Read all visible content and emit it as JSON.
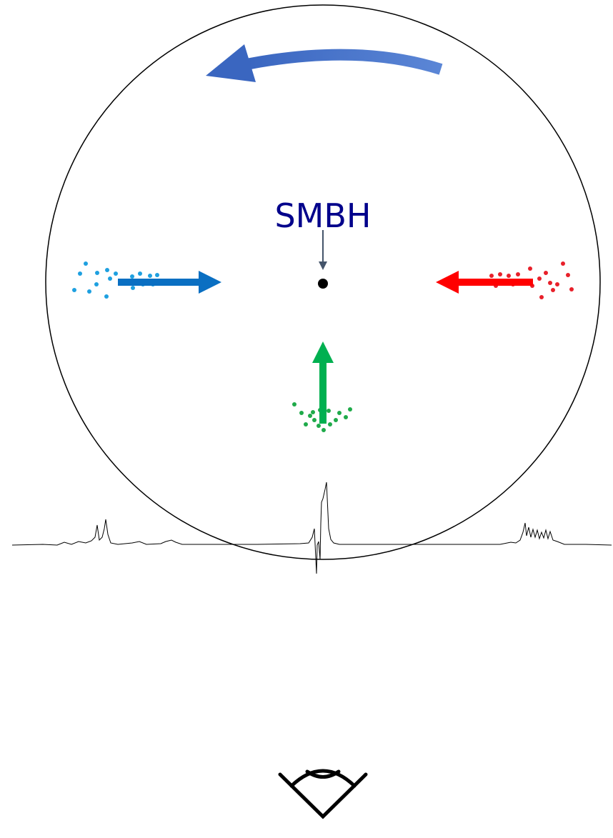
{
  "label": "SMBH"
}
